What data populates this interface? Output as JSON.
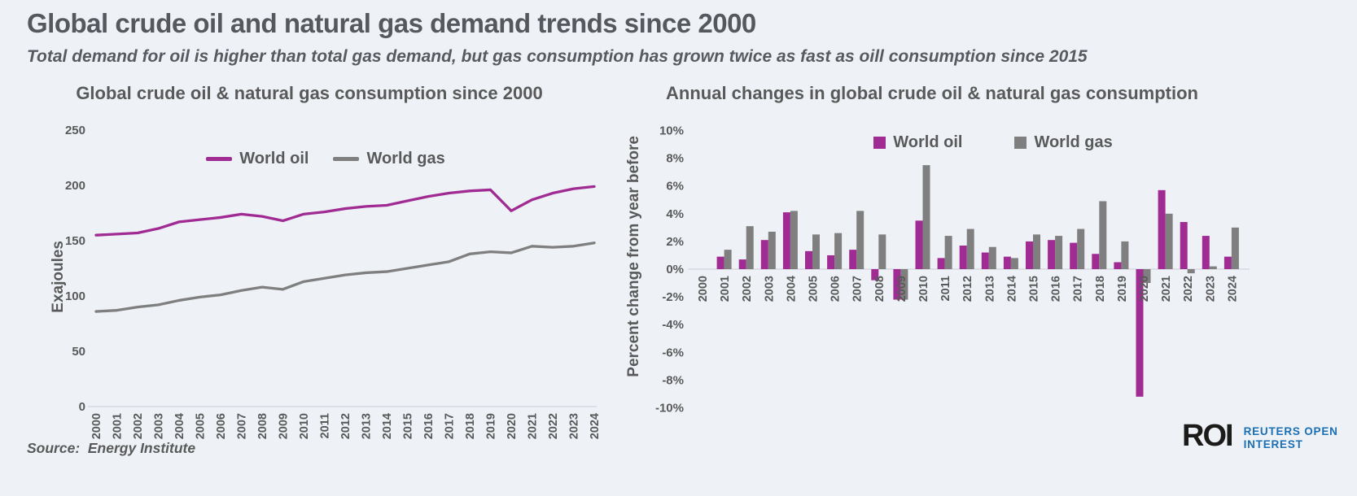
{
  "page": {
    "title": "Global crude oil and natural gas demand trends since 2000",
    "subtitle": "Total demand for oil is higher than total gas demand, but gas consumption has grown twice as fast as oill consumption since 2015",
    "source": "Source:  Energy Institute",
    "logo": {
      "roi": "ROI",
      "line1": "REUTERS OPEN",
      "line2": "INTEREST"
    }
  },
  "colors": {
    "background": "#eef2f7",
    "oil": "#a02b93",
    "gas": "#7f7f7f",
    "text": "#595959",
    "axis_line": "#d5dae1",
    "logo_blue": "#1a6fb5",
    "logo_black": "#1b1b19"
  },
  "chart_data": [
    {
      "type": "line",
      "title": "Global crude oil & natural gas consumption since 2000",
      "xlabel": "",
      "ylabel": "Exajoules",
      "ylim": [
        0,
        250
      ],
      "yticks": [
        250,
        200,
        150,
        100,
        50,
        0
      ],
      "ytick_labels": [
        "250",
        "200",
        "150",
        "100",
        "50",
        "0"
      ],
      "grid": false,
      "legend_position": "top-center",
      "categories": [
        "2000",
        "2001",
        "2002",
        "2003",
        "2004",
        "2005",
        "2006",
        "2007",
        "2008",
        "2009",
        "2010",
        "2011",
        "2012",
        "2013",
        "2014",
        "2015",
        "2016",
        "2017",
        "2018",
        "2019",
        "2020",
        "2021",
        "2022",
        "2023",
        "2024"
      ],
      "series": [
        {
          "name": "World oil",
          "color": "#a02b93",
          "values": [
            155,
            156,
            157,
            161,
            167,
            169,
            171,
            174,
            172,
            168,
            174,
            176,
            179,
            181,
            182,
            186,
            190,
            193,
            195,
            196,
            177,
            187,
            193,
            197,
            199
          ]
        },
        {
          "name": "World gas",
          "color": "#7f7f7f",
          "values": [
            86,
            87,
            90,
            92,
            96,
            99,
            101,
            105,
            108,
            106,
            113,
            116,
            119,
            121,
            122,
            125,
            128,
            131,
            138,
            140,
            139,
            145,
            144,
            145,
            148
          ]
        }
      ]
    },
    {
      "type": "bar",
      "title": "Annual changes in global crude oil & natural gas consumption",
      "xlabel": "",
      "ylabel": "Percent change from year before",
      "ylim": [
        -10,
        10
      ],
      "yticks": [
        10,
        8,
        6,
        4,
        2,
        0,
        -2,
        -4,
        -6,
        -8,
        -10
      ],
      "ytick_labels": [
        "10%",
        "8%",
        "6%",
        "4%",
        "2%",
        "0%",
        "-2%",
        "-4%",
        "-6%",
        "-8%",
        "-10%"
      ],
      "grid": false,
      "legend_position": "top-center",
      "categories": [
        "2000",
        "2001",
        "2002",
        "2003",
        "2004",
        "2005",
        "2006",
        "2007",
        "2008",
        "2009",
        "2010",
        "2011",
        "2012",
        "2013",
        "2014",
        "2015",
        "2016",
        "2017",
        "2018",
        "2019",
        "2020",
        "2021",
        "2022",
        "2023",
        "2024"
      ],
      "series": [
        {
          "name": "World oil",
          "color": "#a02b93",
          "values": [
            0,
            0.9,
            0.7,
            2.1,
            4.1,
            1.3,
            1.0,
            1.4,
            -0.8,
            -2.2,
            3.5,
            0.8,
            1.7,
            1.2,
            0.9,
            2.0,
            2.1,
            1.9,
            1.1,
            0.5,
            -9.2,
            5.7,
            3.4,
            2.4,
            0.9
          ]
        },
        {
          "name": "World gas",
          "color": "#7f7f7f",
          "values": [
            0,
            1.4,
            3.1,
            2.7,
            4.2,
            2.5,
            2.6,
            4.2,
            2.5,
            -2.2,
            7.5,
            2.4,
            2.9,
            1.6,
            0.8,
            2.5,
            2.4,
            2.9,
            4.9,
            2.0,
            -1.0,
            4.0,
            -0.3,
            0.2,
            3.0
          ]
        }
      ]
    }
  ]
}
